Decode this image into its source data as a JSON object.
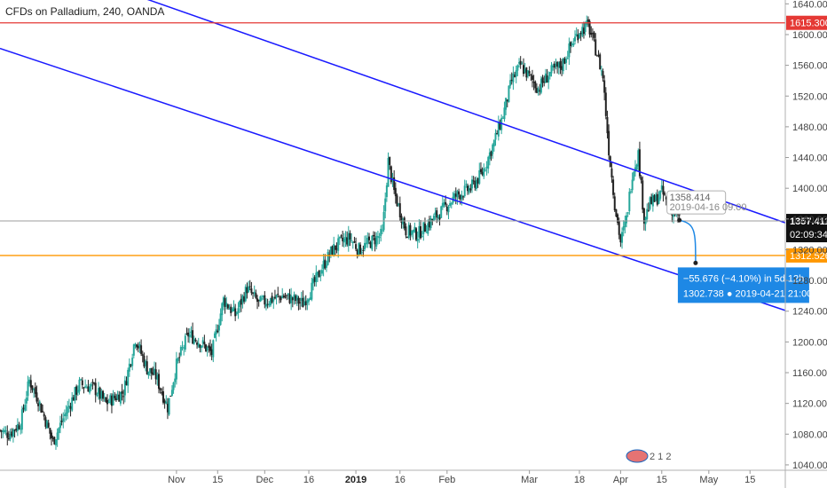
{
  "title": "CFDs on Palladium, 240, OANDA",
  "chart_data": {
    "type": "candlestick",
    "ylim": [
      1033,
      1645
    ],
    "y_ticks": [
      1640,
      1600,
      1560,
      1520,
      1480,
      1440,
      1400,
      1360,
      1320,
      1280,
      1240,
      1200,
      1160,
      1120,
      1080,
      1040
    ],
    "y_tick_labels": [
      "1640.000",
      "1600.000",
      "1560.000",
      "1520.000",
      "1480.000",
      "1440.000",
      "1400.000",
      "1360.000",
      "1320.000",
      "1280.000",
      "1240.000",
      "1200.000",
      "1160.000",
      "1120.000",
      "1080.000",
      "1040.000"
    ],
    "x_labels": [
      "Nov",
      "15",
      "Dec",
      "16",
      "2019",
      "16",
      "Feb",
      "Mar",
      "18",
      "Apr",
      "15",
      "May",
      "15"
    ],
    "x_label_days": [
      0,
      14,
      30,
      45,
      61,
      76,
      92,
      120,
      137,
      151,
      165,
      181,
      195
    ],
    "bold_x_labels": [
      "2019"
    ],
    "x_range_days": [
      -60,
      207
    ],
    "price_path": [
      [
        -60,
        1085
      ],
      [
        -57,
        1080
      ],
      [
        -53,
        1095
      ],
      [
        -50,
        1150
      ],
      [
        -47,
        1125
      ],
      [
        -42,
        1070
      ],
      [
        -38,
        1105
      ],
      [
        -33,
        1145
      ],
      [
        -28,
        1140
      ],
      [
        -24,
        1120
      ],
      [
        -18,
        1135
      ],
      [
        -14,
        1205
      ],
      [
        -10,
        1165
      ],
      [
        -7,
        1155
      ],
      [
        -3,
        1115
      ],
      [
        0,
        1170
      ],
      [
        4,
        1210
      ],
      [
        8,
        1200
      ],
      [
        12,
        1185
      ],
      [
        16,
        1255
      ],
      [
        20,
        1235
      ],
      [
        24,
        1270
      ],
      [
        28,
        1250
      ],
      [
        32,
        1255
      ],
      [
        36,
        1260
      ],
      [
        40,
        1255
      ],
      [
        43,
        1250
      ],
      [
        46,
        1270
      ],
      [
        50,
        1300
      ],
      [
        53,
        1320
      ],
      [
        56,
        1330
      ],
      [
        59,
        1335
      ],
      [
        62,
        1320
      ],
      [
        66,
        1330
      ],
      [
        70,
        1340
      ],
      [
        72,
        1435
      ],
      [
        74,
        1395
      ],
      [
        78,
        1345
      ],
      [
        82,
        1340
      ],
      [
        86,
        1355
      ],
      [
        90,
        1370
      ],
      [
        95,
        1390
      ],
      [
        100,
        1400
      ],
      [
        104,
        1420
      ],
      [
        108,
        1460
      ],
      [
        111,
        1495
      ],
      [
        114,
        1540
      ],
      [
        117,
        1560
      ],
      [
        120,
        1545
      ],
      [
        123,
        1530
      ],
      [
        127,
        1550
      ],
      [
        131,
        1560
      ],
      [
        134,
        1585
      ],
      [
        137,
        1605
      ],
      [
        140,
        1612
      ],
      [
        143,
        1575
      ],
      [
        145,
        1545
      ],
      [
        147,
        1450
      ],
      [
        149,
        1380
      ],
      [
        151,
        1330
      ],
      [
        153,
        1360
      ],
      [
        155,
        1420
      ],
      [
        157,
        1445
      ],
      [
        159,
        1360
      ],
      [
        161,
        1380
      ],
      [
        163,
        1385
      ],
      [
        165,
        1395
      ],
      [
        167,
        1380
      ],
      [
        170,
        1365
      ],
      [
        171,
        1358
      ]
    ],
    "horizontal_levels": [
      {
        "value": 1615.3,
        "label": "1615.300",
        "color": "#e53935"
      },
      {
        "value": 1312.526,
        "label": "1312.526",
        "color": "#ff9800"
      }
    ],
    "current_price": {
      "value": 1357.411,
      "label": "1357.411",
      "countdown": "02:09:34"
    },
    "trend_lines": [
      {
        "color": "#1a1aff",
        "from": [
          -60,
          1713
        ],
        "to": [
          207,
          1355
        ]
      },
      {
        "color": "#1a1aff",
        "from": [
          -60,
          1582
        ],
        "to": [
          207,
          1241
        ]
      }
    ],
    "tooltip": {
      "price": "1358.414",
      "datetime": "2019-04-16 09:00",
      "day": 171,
      "value": 1358.414
    },
    "projection": {
      "change": "−55.676 (−4.10%) in 5d 12h",
      "target_price": "1302.738",
      "target_datetime": "2019-04-21  21:00",
      "from_day": 171,
      "from_value": 1358.414,
      "to_day": 176.5,
      "to_value": 1302.738,
      "color": "#1e88e5"
    },
    "colors": {
      "up": "#26a69a",
      "down": "#222222",
      "axis": "#999999",
      "background": "#ffffff"
    }
  },
  "watermark_text": "2 1 2"
}
